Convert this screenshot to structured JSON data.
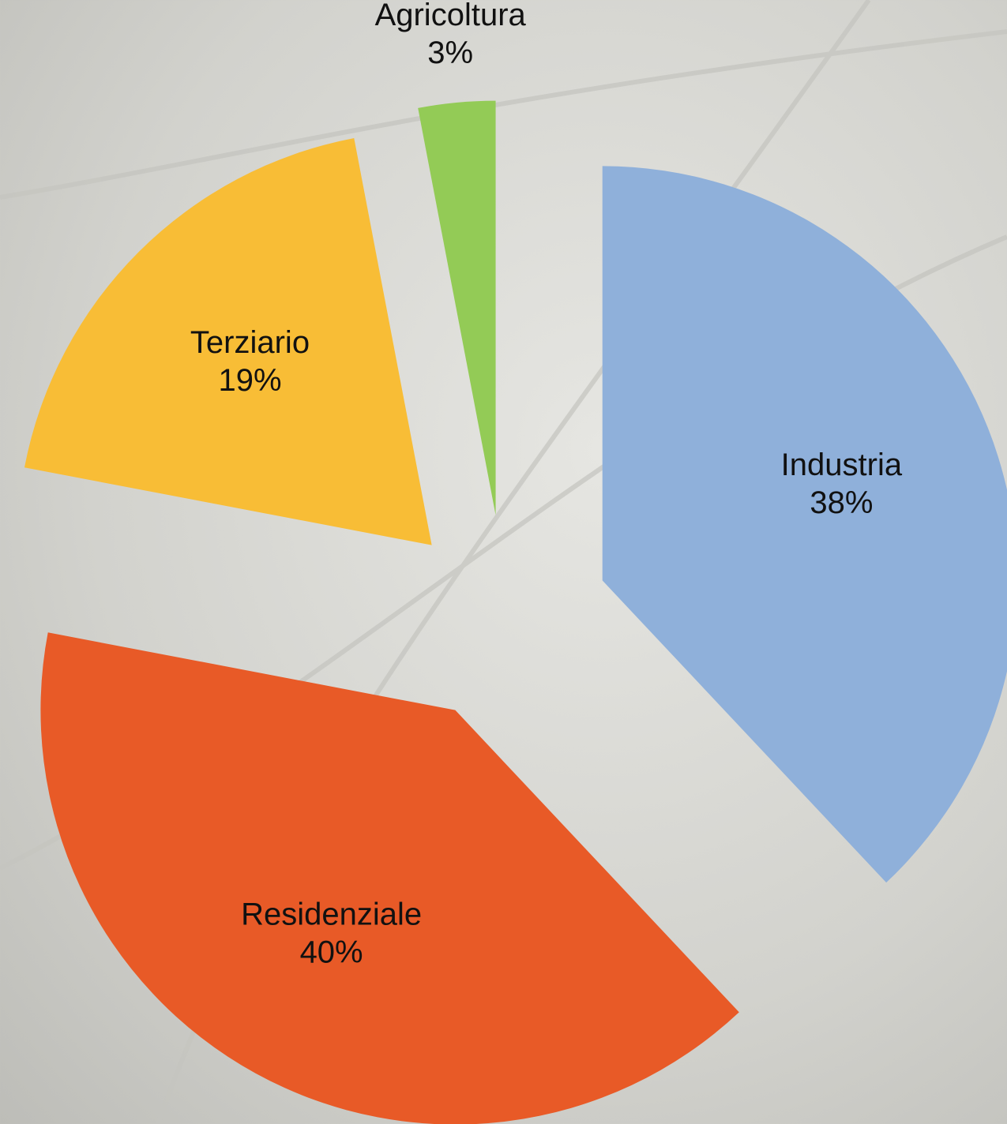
{
  "chart_data": {
    "type": "pie",
    "categories": [
      "Industria",
      "Residenziale",
      "Terziario",
      "Agricoltura"
    ],
    "values": [
      38,
      40,
      19,
      3
    ],
    "value_labels": [
      "38%",
      "40%",
      "19%",
      "3%"
    ],
    "colors": [
      "#8fb0da",
      "#e85a27",
      "#f8bd36",
      "#93cb56"
    ],
    "exploded": true
  }
}
